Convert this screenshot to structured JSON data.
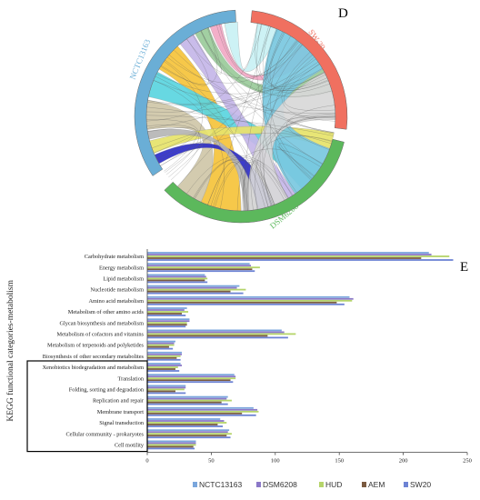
{
  "chord": {
    "panel_label": "D",
    "segments": [
      {
        "name": "SW-20",
        "color": "#f07060"
      },
      {
        "name": "NCTC13163",
        "color": "#6aaed6"
      },
      {
        "name": "DSM6208",
        "color": "#5cb85c"
      }
    ]
  },
  "chart_data": {
    "type": "bar",
    "orientation": "horizontal",
    "panel_label": "E",
    "title": "",
    "ylabel": "KEGG functional categories-metabolism",
    "xlabel": "",
    "xlim": [
      0,
      250
    ],
    "xticks": [
      0,
      50,
      100,
      150,
      200,
      250
    ],
    "grid": false,
    "legend_position": "bottom",
    "categories": [
      "Carbohydrate metabolism",
      "Energy metabolism",
      "Lipid metabolism",
      "Nucleotide metabolism",
      "Amino acid metabolism",
      "Metabolism of other amino acids",
      "Glycan biosynthesis and metabolism",
      "Metabolism of cofactors and vitamins",
      "Metabolism of terpenoids and polyketides",
      "Biosynthesis of other secondary metabolites",
      "Xenobiotics biodegradation and metabolism",
      "Translation",
      "Folding, sorting and degradation",
      "Replication and repair",
      "Membrane transport",
      "Signal transduction",
      "Cellular community - prokaryotes",
      "Cell motility"
    ],
    "boxed_range": [
      "Xenobiotics biodegradation and metabolism",
      "Cell motility"
    ],
    "series": [
      {
        "name": "NCTC13163",
        "color": "#7aa6dc",
        "values": [
          220,
          80,
          45,
          72,
          158,
          31,
          33,
          105,
          22,
          27,
          26,
          68,
          30,
          63,
          83,
          57,
          64,
          38
        ]
      },
      {
        "name": "DSM6208",
        "color": "#8b78c8",
        "values": [
          222,
          81,
          46,
          70,
          161,
          29,
          33,
          107,
          21,
          27,
          27,
          69,
          30,
          62,
          86,
          60,
          63,
          38
        ]
      },
      {
        "name": "HUD",
        "color": "#b5d46a",
        "values": [
          236,
          88,
          47,
          77,
          160,
          32,
          31,
          116,
          21,
          26,
          24,
          69,
          29,
          66,
          87,
          62,
          66,
          38
        ]
      },
      {
        "name": "AEM",
        "color": "#7a5a40",
        "values": [
          214,
          82,
          45,
          65,
          148,
          27,
          31,
          94,
          17,
          23,
          22,
          65,
          22,
          58,
          74,
          55,
          62,
          36
        ]
      },
      {
        "name": "SW20",
        "color": "#6d83d4",
        "values": [
          239,
          84,
          47,
          75,
          154,
          30,
          30,
          110,
          20,
          26,
          25,
          67,
          30,
          63,
          85,
          59,
          65,
          37
        ]
      }
    ]
  }
}
